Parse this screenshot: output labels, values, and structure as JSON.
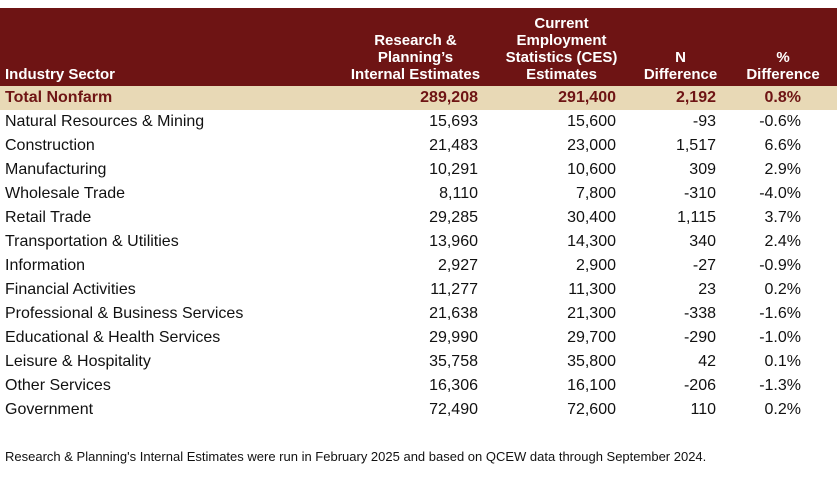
{
  "table": {
    "headers": {
      "sector": "Industry Sector",
      "internal": [
        "Research &",
        "Planning’s",
        "Internal Estimates"
      ],
      "ces": [
        "Current",
        "Employment",
        "Statistics (CES)",
        "Estimates"
      ],
      "n_diff": [
        "N",
        "Difference"
      ],
      "pct_diff": [
        "%",
        "Difference"
      ]
    },
    "total": {
      "sector": "Total Nonfarm",
      "internal": "289,208",
      "ces": "291,400",
      "n_diff": "2,192",
      "pct_diff": "0.8%"
    },
    "rows": [
      {
        "sector": "Natural Resources & Mining",
        "internal": "15,693",
        "ces": "15,600",
        "n_diff": "-93",
        "pct_diff": "-0.6%"
      },
      {
        "sector": "Construction",
        "internal": "21,483",
        "ces": "23,000",
        "n_diff": "1,517",
        "pct_diff": "6.6%"
      },
      {
        "sector": "Manufacturing",
        "internal": "10,291",
        "ces": "10,600",
        "n_diff": "309",
        "pct_diff": "2.9%"
      },
      {
        "sector": "Wholesale Trade",
        "internal": "8,110",
        "ces": "7,800",
        "n_diff": "-310",
        "pct_diff": "-4.0%"
      },
      {
        "sector": "Retail Trade",
        "internal": "29,285",
        "ces": "30,400",
        "n_diff": "1,115",
        "pct_diff": "3.7%"
      },
      {
        "sector": "Transportation & Utilities",
        "internal": "13,960",
        "ces": "14,300",
        "n_diff": "340",
        "pct_diff": "2.4%"
      },
      {
        "sector": "Information",
        "internal": "2,927",
        "ces": "2,900",
        "n_diff": "-27",
        "pct_diff": "-0.9%"
      },
      {
        "sector": "Financial Activities",
        "internal": "11,277",
        "ces": "11,300",
        "n_diff": "23",
        "pct_diff": "0.2%"
      },
      {
        "sector": "Professional & Business Services",
        "internal": "21,638",
        "ces": "21,300",
        "n_diff": "-338",
        "pct_diff": "-1.6%"
      },
      {
        "sector": "Educational & Health Services",
        "internal": "29,990",
        "ces": "29,700",
        "n_diff": "-290",
        "pct_diff": "-1.0%"
      },
      {
        "sector": "Leisure & Hospitality",
        "internal": "35,758",
        "ces": "35,800",
        "n_diff": "42",
        "pct_diff": "0.1%"
      },
      {
        "sector": "Other Services",
        "internal": "16,306",
        "ces": "16,100",
        "n_diff": "-206",
        "pct_diff": "-1.3%"
      },
      {
        "sector": "Government",
        "internal": "72,490",
        "ces": "72,600",
        "n_diff": "110",
        "pct_diff": "0.2%"
      }
    ]
  },
  "footnote": "Research & Planning's Internal Estimates were run in February 2025 and based on QCEW data through September 2024.",
  "colors": {
    "header_bg": "#6e1414",
    "total_bg": "#e8d9b6",
    "total_text": "#6e1414"
  }
}
